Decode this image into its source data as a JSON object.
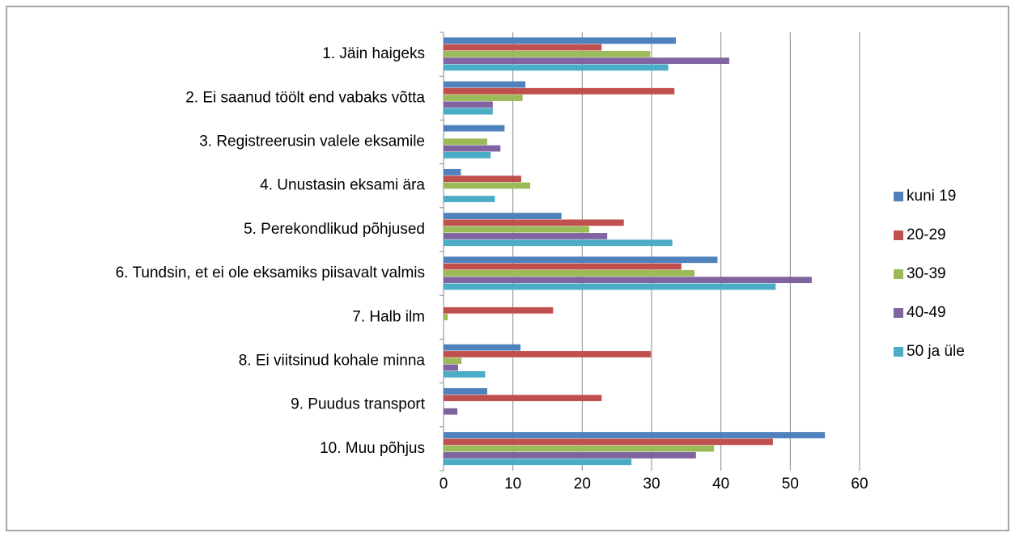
{
  "chart_data": {
    "type": "hbar",
    "categories": [
      "1. Jäin haigeks",
      "2. Ei saanud töölt end vabaks võtta",
      "3. Registreerusin valele eksamile",
      "4. Unustasin eksami ära",
      "5. Perekondlikud põhjused",
      "6. Tundsin, et ei ole eksamiks piisavalt valmis",
      "7. Halb ilm",
      "8. Ei viitsinud kohale minna",
      "9. Puudus transport",
      "10. Muu põhjus"
    ],
    "series": [
      {
        "name": "kuni 19",
        "color": "#4f81bd",
        "values": [
          33.5,
          11.8,
          8.8,
          2.5,
          17,
          39.5,
          null,
          11.1,
          6.3,
          55
        ]
      },
      {
        "name": "20-29",
        "color": "#c0504d",
        "values": [
          22.8,
          33.3,
          null,
          11.2,
          26,
          34.3,
          15.8,
          29.9,
          22.8,
          47.5
        ]
      },
      {
        "name": "30-39",
        "color": "#9bbb59",
        "values": [
          29.8,
          11.4,
          6.3,
          12.5,
          21,
          36.2,
          0.6,
          2.6,
          null,
          39
        ]
      },
      {
        "name": "40-49",
        "color": "#8064a2",
        "values": [
          41.2,
          7.1,
          8.2,
          null,
          23.6,
          53.1,
          null,
          2.1,
          2,
          36.4
        ]
      },
      {
        "name": "50 ja üle",
        "color": "#4bacc6",
        "values": [
          32.4,
          7.1,
          6.8,
          7.4,
          33,
          47.9,
          null,
          6,
          null,
          27.1
        ]
      }
    ],
    "xlim": [
      0,
      60
    ],
    "xticks": [
      0,
      10,
      20,
      30,
      40,
      50,
      60
    ],
    "grid": true,
    "legend": "right"
  }
}
